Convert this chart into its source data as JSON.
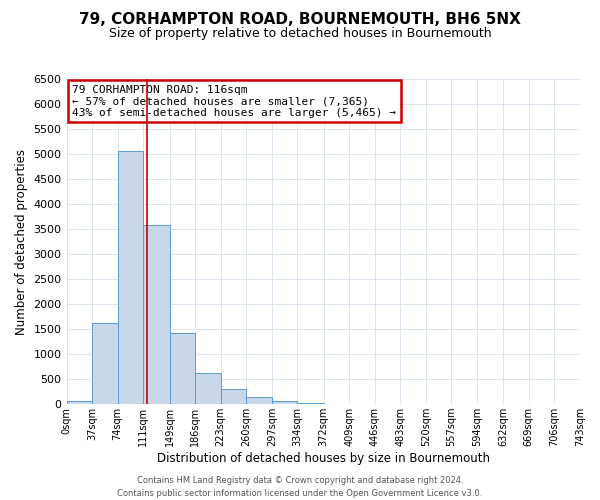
{
  "title": "79, CORHAMPTON ROAD, BOURNEMOUTH, BH6 5NX",
  "subtitle": "Size of property relative to detached houses in Bournemouth",
  "xlabel": "Distribution of detached houses by size in Bournemouth",
  "ylabel": "Number of detached properties",
  "bar_edges": [
    0,
    37,
    74,
    111,
    149,
    186,
    223,
    260,
    297,
    334,
    372,
    409,
    446,
    483,
    520,
    557,
    594,
    632,
    669,
    706,
    743
  ],
  "bar_heights": [
    60,
    1630,
    5060,
    3580,
    1430,
    620,
    300,
    150,
    70,
    15,
    5,
    2,
    0,
    0,
    0,
    0,
    0,
    0,
    0,
    0
  ],
  "bar_color": "#c8d8e8",
  "bar_edge_color": "#5b9bd5",
  "property_line_x": 116,
  "ylim": [
    0,
    6500
  ],
  "xlim": [
    0,
    743
  ],
  "yticks": [
    0,
    500,
    1000,
    1500,
    2000,
    2500,
    3000,
    3500,
    4000,
    4500,
    5000,
    5500,
    6000,
    6500
  ],
  "tick_labels": [
    "0sqm",
    "37sqm",
    "74sqm",
    "111sqm",
    "149sqm",
    "186sqm",
    "223sqm",
    "260sqm",
    "297sqm",
    "334sqm",
    "372sqm",
    "409sqm",
    "446sqm",
    "483sqm",
    "520sqm",
    "557sqm",
    "594sqm",
    "632sqm",
    "669sqm",
    "706sqm",
    "743sqm"
  ],
  "annotation_title": "79 CORHAMPTON ROAD: 116sqm",
  "annotation_line1": "← 57% of detached houses are smaller (7,365)",
  "annotation_line2": "43% of semi-detached houses are larger (5,465) →",
  "annotation_box_color": "#ffffff",
  "annotation_border_color": "#cc0000",
  "footer_line1": "Contains HM Land Registry data © Crown copyright and database right 2024.",
  "footer_line2": "Contains public sector information licensed under the Open Government Licence v3.0.",
  "background_color": "#ffffff",
  "grid_color": "#dce6f0"
}
